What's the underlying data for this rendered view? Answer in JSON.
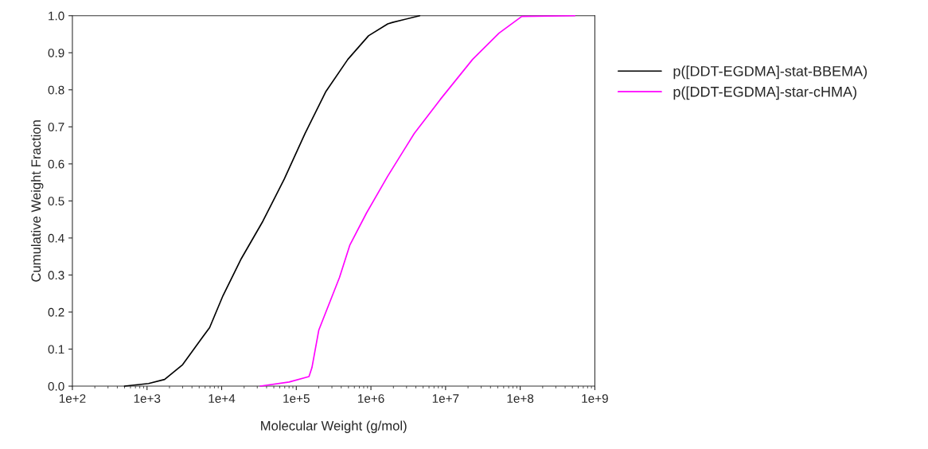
{
  "chart_data": {
    "type": "line",
    "xlabel": "Molecular Weight (g/mol)",
    "ylabel": "Cumulative Weight Fraction",
    "log": "x",
    "grid": false,
    "legend": "right",
    "marker": "none",
    "line_style": "solid",
    "xlim": [
      100,
      1000000000
    ],
    "ylim": [
      0,
      1
    ],
    "xticks": [
      {
        "value": 100,
        "label": "1e+2"
      },
      {
        "value": 1000,
        "label": "1e+3"
      },
      {
        "value": 10000,
        "label": "1e+4"
      },
      {
        "value": 100000,
        "label": "1e+5"
      },
      {
        "value": 1000000,
        "label": "1e+6"
      },
      {
        "value": 10000000,
        "label": "1e+7"
      },
      {
        "value": 100000000,
        "label": "1e+8"
      },
      {
        "value": 1000000000,
        "label": "1e+9"
      }
    ],
    "yticks": [
      {
        "value": 0,
        "label": "0.0"
      },
      0.1,
      0.2,
      0.3,
      0.4,
      0.5,
      0.6,
      0.7,
      0.8,
      0.9,
      {
        "value": 1,
        "label": "1.0"
      }
    ],
    "series": [
      {
        "name": "p([DDT-EGDMA]-stat-BBEMA)",
        "color": "#000000",
        "x": [
          500,
          1050,
          1720,
          3000,
          5400,
          6900,
          10400,
          18300,
          35600,
          69000,
          131000,
          250000,
          490000,
          930000,
          1680000,
          1950000,
          4500000
        ],
        "values": [
          0,
          0.007,
          0.018,
          0.058,
          0.129,
          0.158,
          0.244,
          0.344,
          0.445,
          0.559,
          0.682,
          0.796,
          0.882,
          0.946,
          0.978,
          0.982,
          1.0
        ]
      },
      {
        "name": "p([DDT-EGDMA]-star-cHMA)",
        "color": "#ff00ff",
        "x": [
          33000,
          80000,
          148000,
          162000,
          200000,
          275000,
          380000,
          520000,
          870000,
          1670000,
          3800000,
          8500000,
          23000000,
          52000000,
          105000000,
          540000000
        ],
        "values": [
          0,
          0.011,
          0.026,
          0.05,
          0.151,
          0.222,
          0.294,
          0.38,
          0.467,
          0.566,
          0.682,
          0.774,
          0.882,
          0.953,
          0.998,
          1.0
        ]
      }
    ]
  }
}
